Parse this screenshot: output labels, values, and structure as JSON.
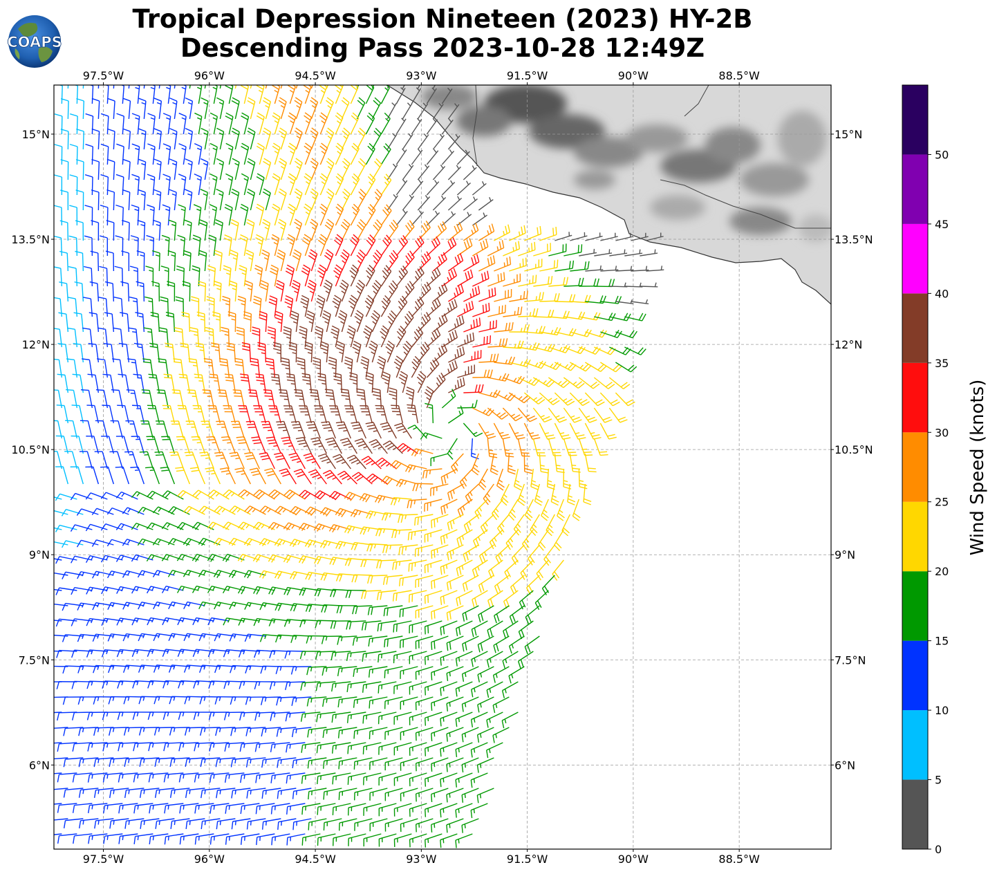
{
  "title": {
    "line1": "Tropical Depression Nineteen (2023) HY-2B",
    "line2": "Descending Pass 2023-10-28 12:49Z"
  },
  "logo": {
    "text": "COAPS",
    "icon": "globe-icon"
  },
  "map": {
    "lon_range": [
      -98.2,
      -87.2
    ],
    "lat_range": [
      4.8,
      15.7
    ],
    "lon_ticks": [
      "97.5°W",
      "96°W",
      "94.5°W",
      "93°W",
      "91.5°W",
      "90°W",
      "88.5°W"
    ],
    "lon_tick_values": [
      -97.5,
      -96,
      -94.5,
      -93,
      -91.5,
      -90,
      -88.5
    ],
    "lat_ticks": [
      "15°N",
      "13.5°N",
      "12°N",
      "10.5°N",
      "9°N",
      "7.5°N",
      "6°N"
    ],
    "lat_tick_values": [
      15,
      13.5,
      12,
      10.5,
      9,
      7.5,
      6
    ],
    "gridlines": true,
    "land_shading": "grayscale-topography",
    "storm_center": {
      "lon": -92.6,
      "lat": 10.8
    }
  },
  "colorbar": {
    "label": "Wind Speed (knots)",
    "ticks": [
      "0",
      "5",
      "10",
      "15",
      "20",
      "25",
      "30",
      "35",
      "40",
      "45",
      "50"
    ],
    "bins": [
      {
        "min": 0,
        "max": 5,
        "color": "#555555"
      },
      {
        "min": 5,
        "max": 10,
        "color": "#00bfff"
      },
      {
        "min": 10,
        "max": 15,
        "color": "#0033ff"
      },
      {
        "min": 15,
        "max": 20,
        "color": "#009900"
      },
      {
        "min": 20,
        "max": 25,
        "color": "#ffd700"
      },
      {
        "min": 25,
        "max": 30,
        "color": "#ff8c00"
      },
      {
        "min": 30,
        "max": 35,
        "color": "#ff0d0d"
      },
      {
        "min": 35,
        "max": 40,
        "color": "#833c28"
      },
      {
        "min": 40,
        "max": 45,
        "color": "#ff00ff"
      },
      {
        "min": 45,
        "max": 50,
        "color": "#8000b0"
      },
      {
        "min": 50,
        "max": 55,
        "color": "#2a0060"
      }
    ]
  }
}
